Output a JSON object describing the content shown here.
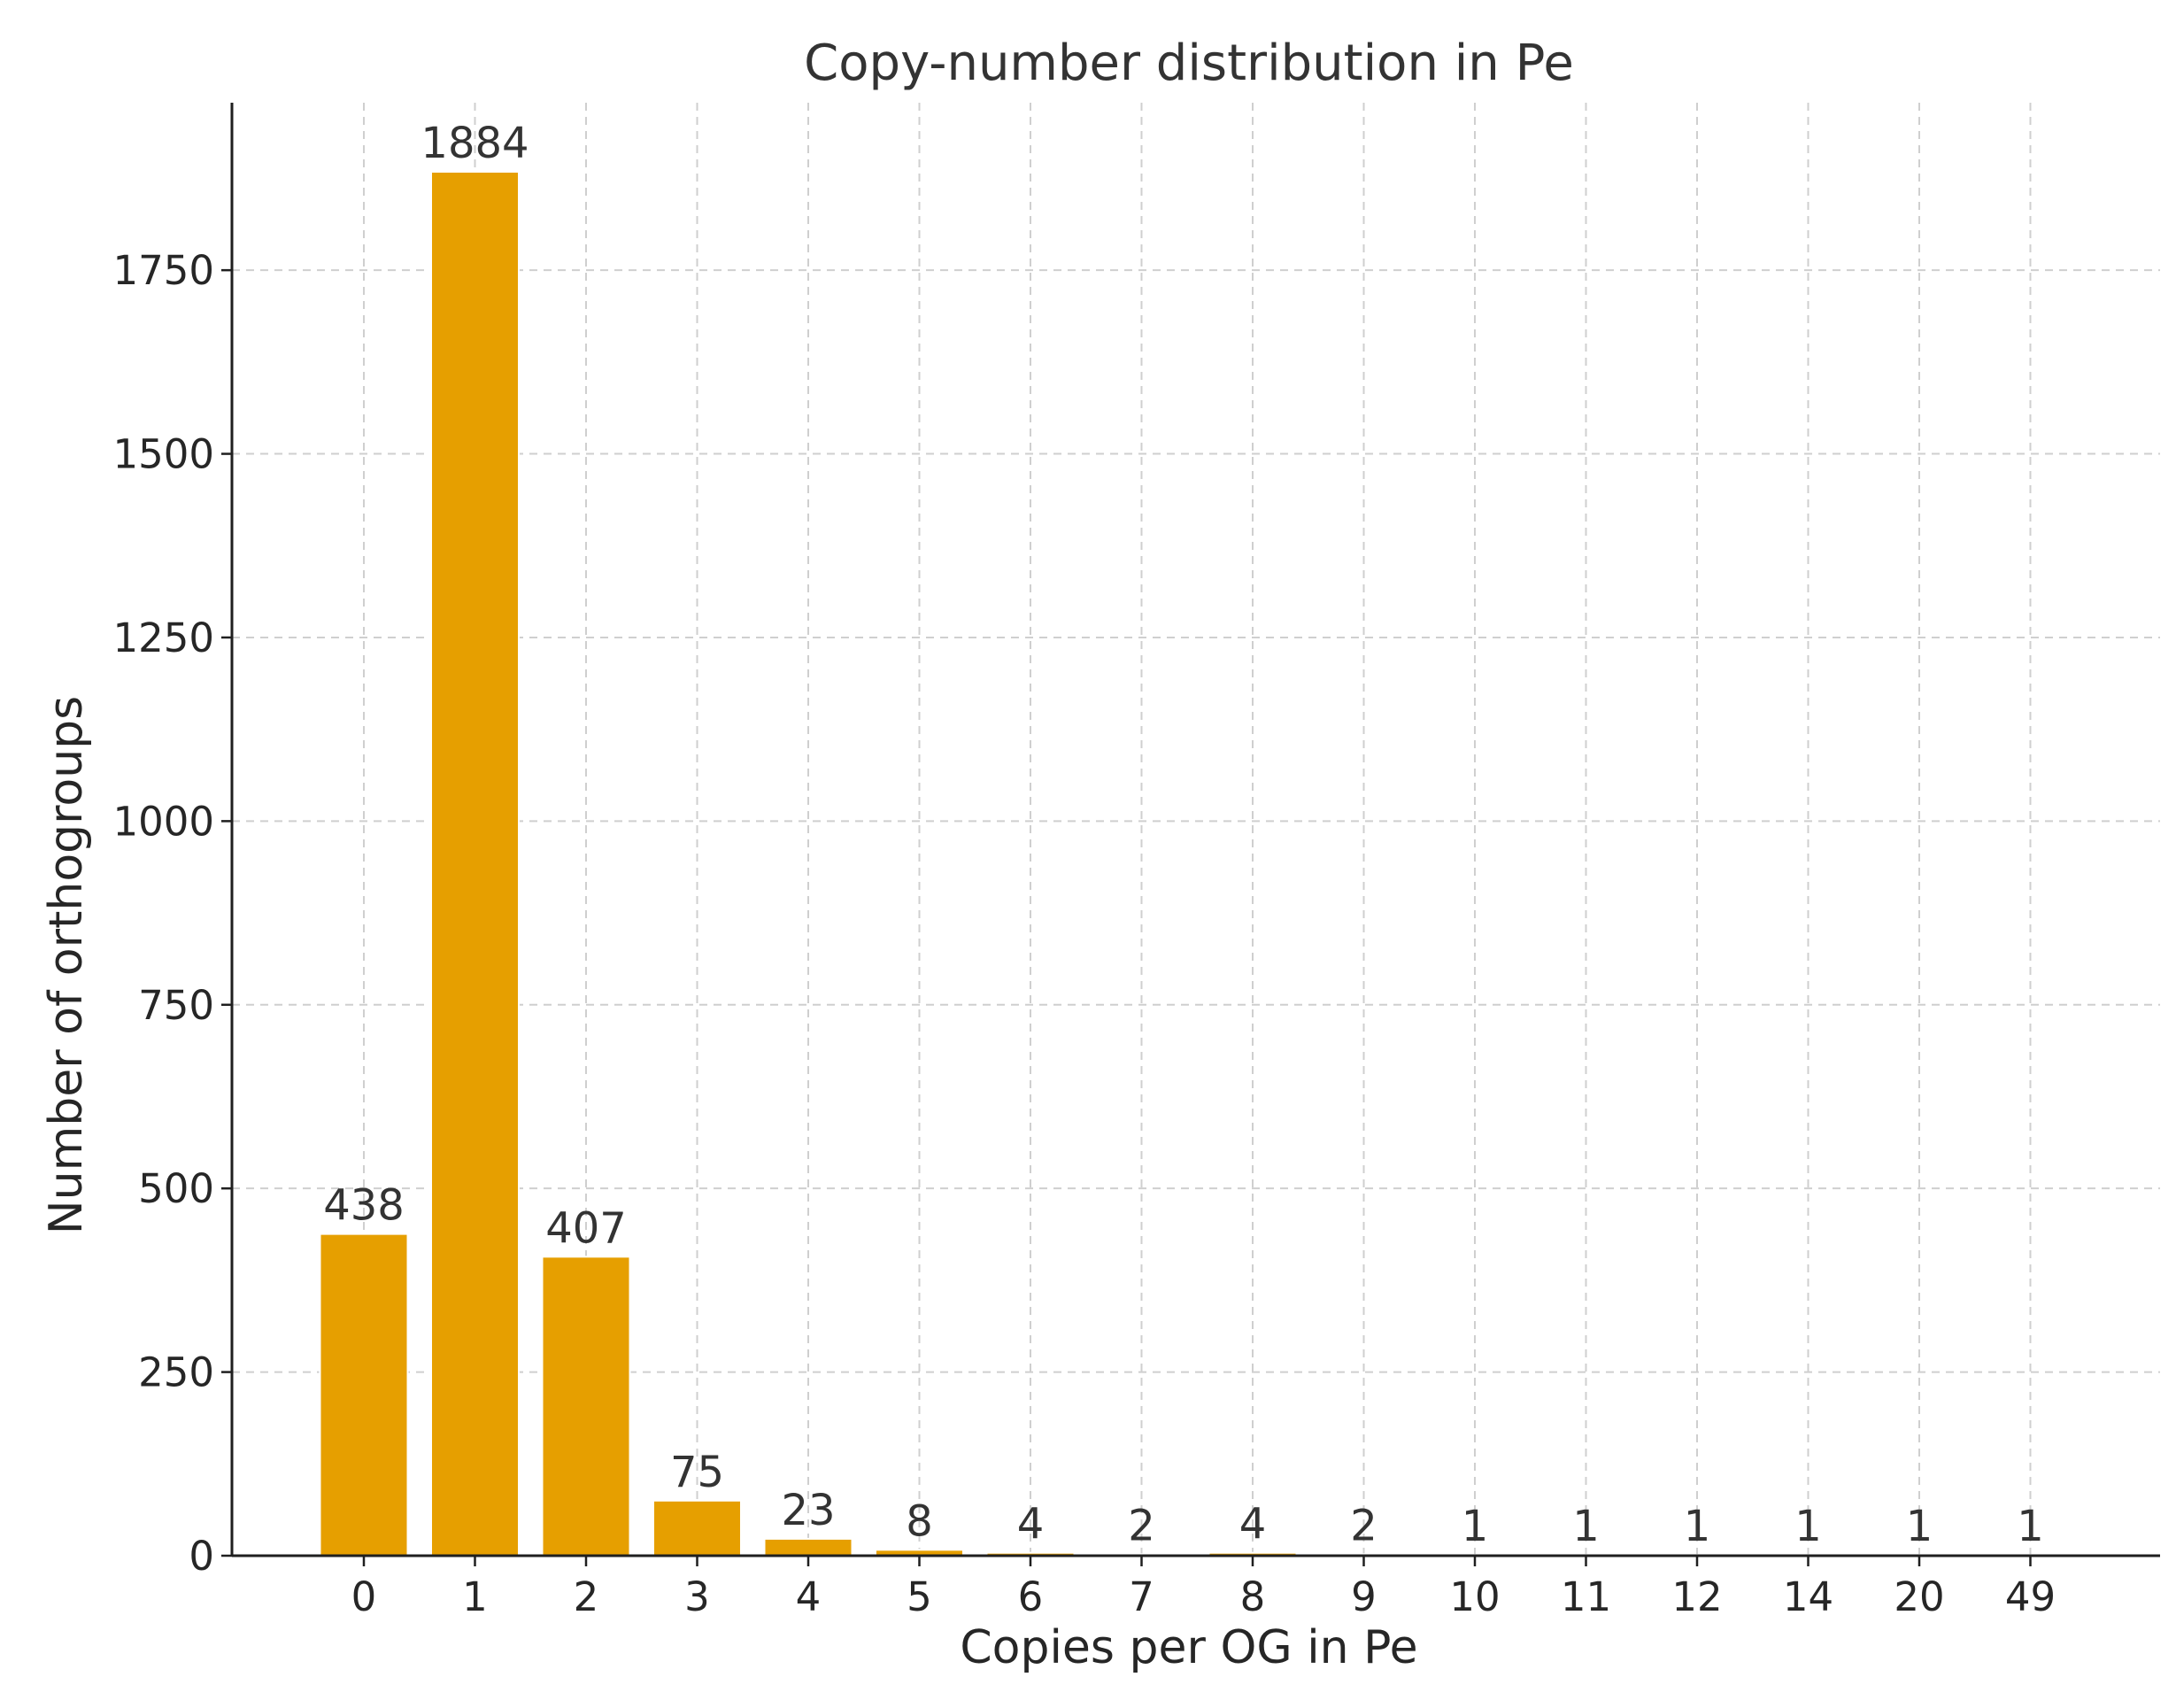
{
  "chart_data": {
    "type": "bar",
    "title": "Copy-number distribution in Pe",
    "xlabel": "Copies per OG in Pe",
    "ylabel": "Number of orthogroups",
    "categories": [
      "0",
      "1",
      "2",
      "3",
      "4",
      "5",
      "6",
      "7",
      "8",
      "9",
      "10",
      "11",
      "12",
      "14",
      "20",
      "49"
    ],
    "values": [
      438,
      1884,
      407,
      75,
      23,
      8,
      4,
      2,
      4,
      2,
      1,
      1,
      1,
      1,
      1,
      1
    ],
    "data_labels": [
      "438",
      "1884",
      "407",
      "75",
      "23",
      "8",
      "4",
      "2",
      "4",
      "2",
      "1",
      "1",
      "1",
      "1",
      "1",
      "1"
    ],
    "yticks": [
      0,
      250,
      500,
      750,
      1000,
      1250,
      1500,
      1750
    ],
    "ylim": [
      0,
      1978
    ],
    "grid": true,
    "colors": {
      "bar": "#E69F00",
      "bar_edge": "#ffffff"
    }
  }
}
